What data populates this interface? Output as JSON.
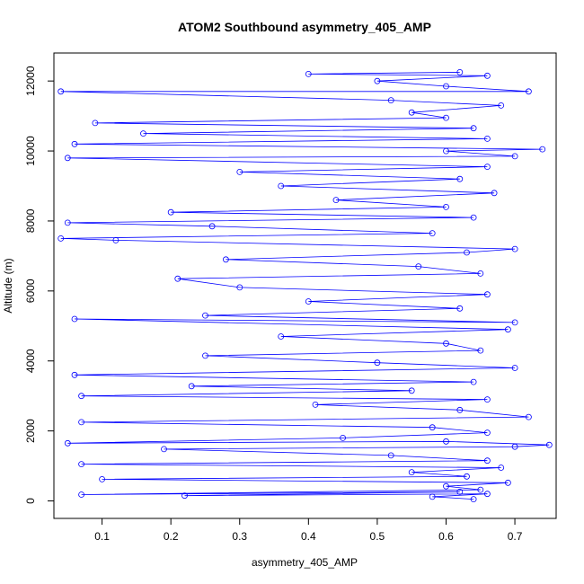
{
  "chart_data": {
    "type": "line",
    "title": "ATOM2 Southbound asymmetry_405_AMP",
    "xlabel": "asymmetry_405_AMP",
    "ylabel": "Altitude (m)",
    "xlim": [
      0.03,
      0.76
    ],
    "ylim": [
      -500,
      12800
    ],
    "xticks": [
      0.1,
      0.2,
      0.3,
      0.4,
      0.5,
      0.6,
      0.7
    ],
    "yticks": [
      0,
      2000,
      4000,
      6000,
      8000,
      10000,
      12000
    ],
    "xtick_labels": [
      "0.1",
      "0.2",
      "0.3",
      "0.4",
      "0.5",
      "0.6",
      "0.7"
    ],
    "ytick_labels": [
      "0",
      "2000",
      "4000",
      "6000",
      "8000",
      "10000",
      "12000"
    ],
    "grid": false,
    "series": [
      {
        "color": "#0000ff",
        "marker": "open-circle",
        "points": [
          [
            0.64,
            50
          ],
          [
            0.58,
            120
          ],
          [
            0.66,
            200
          ],
          [
            0.22,
            150
          ],
          [
            0.62,
            260
          ],
          [
            0.07,
            180
          ],
          [
            0.65,
            320
          ],
          [
            0.6,
            420
          ],
          [
            0.69,
            520
          ],
          [
            0.1,
            620
          ],
          [
            0.63,
            700
          ],
          [
            0.55,
            820
          ],
          [
            0.68,
            950
          ],
          [
            0.07,
            1050
          ],
          [
            0.66,
            1150
          ],
          [
            0.52,
            1300
          ],
          [
            0.19,
            1480
          ],
          [
            0.7,
            1550
          ],
          [
            0.75,
            1600
          ],
          [
            0.6,
            1700
          ],
          [
            0.05,
            1650
          ],
          [
            0.45,
            1800
          ],
          [
            0.66,
            1950
          ],
          [
            0.58,
            2100
          ],
          [
            0.07,
            2250
          ],
          [
            0.72,
            2400
          ],
          [
            0.62,
            2600
          ],
          [
            0.41,
            2750
          ],
          [
            0.66,
            2900
          ],
          [
            0.07,
            3000
          ],
          [
            0.55,
            3150
          ],
          [
            0.23,
            3280
          ],
          [
            0.64,
            3400
          ],
          [
            0.06,
            3600
          ],
          [
            0.7,
            3800
          ],
          [
            0.5,
            3950
          ],
          [
            0.25,
            4150
          ],
          [
            0.65,
            4300
          ],
          [
            0.6,
            4500
          ],
          [
            0.36,
            4700
          ],
          [
            0.69,
            4900
          ],
          [
            0.06,
            5200
          ],
          [
            0.7,
            5100
          ],
          [
            0.25,
            5300
          ],
          [
            0.62,
            5500
          ],
          [
            0.4,
            5700
          ],
          [
            0.66,
            5900
          ],
          [
            0.3,
            6100
          ],
          [
            0.21,
            6350
          ],
          [
            0.65,
            6500
          ],
          [
            0.56,
            6700
          ],
          [
            0.28,
            6900
          ],
          [
            0.63,
            7100
          ],
          [
            0.7,
            7200
          ],
          [
            0.12,
            7450
          ],
          [
            0.04,
            7500
          ],
          [
            0.58,
            7650
          ],
          [
            0.26,
            7850
          ],
          [
            0.05,
            7950
          ],
          [
            0.64,
            8100
          ],
          [
            0.2,
            8250
          ],
          [
            0.6,
            8400
          ],
          [
            0.44,
            8600
          ],
          [
            0.67,
            8800
          ],
          [
            0.36,
            9000
          ],
          [
            0.62,
            9200
          ],
          [
            0.3,
            9400
          ],
          [
            0.66,
            9550
          ],
          [
            0.05,
            9800
          ],
          [
            0.7,
            9850
          ],
          [
            0.6,
            10000
          ],
          [
            0.74,
            10050
          ],
          [
            0.06,
            10200
          ],
          [
            0.66,
            10350
          ],
          [
            0.16,
            10500
          ],
          [
            0.64,
            10650
          ],
          [
            0.09,
            10800
          ],
          [
            0.6,
            10950
          ],
          [
            0.55,
            11100
          ],
          [
            0.68,
            11300
          ],
          [
            0.52,
            11450
          ],
          [
            0.04,
            11700
          ],
          [
            0.72,
            11700
          ],
          [
            0.6,
            11850
          ],
          [
            0.5,
            12000
          ],
          [
            0.66,
            12150
          ],
          [
            0.4,
            12200
          ],
          [
            0.62,
            12250
          ]
        ]
      }
    ]
  }
}
